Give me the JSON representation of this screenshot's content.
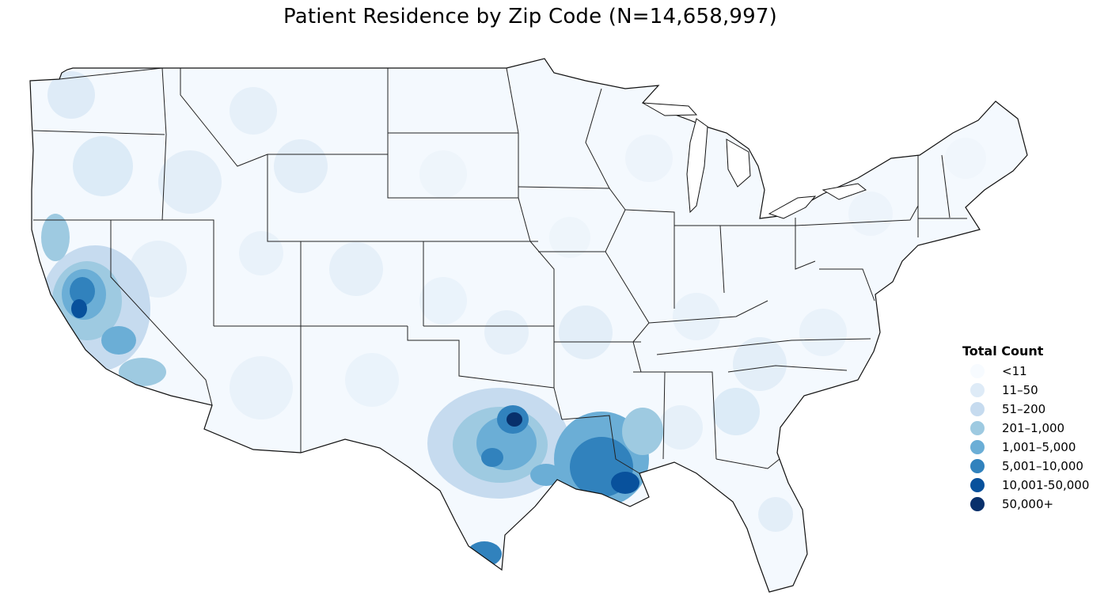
{
  "title": "Patient Residence by Zip Code (N=14,658,997)",
  "legend": {
    "title": "Total Count",
    "items": [
      {
        "label": "<11",
        "color": "#f7fbff"
      },
      {
        "label": "11–50",
        "color": "#deebf7"
      },
      {
        "label": "51–200",
        "color": "#c6dbef"
      },
      {
        "label": "201–1,000",
        "color": "#9ecae1"
      },
      {
        "label": "1,001–5,000",
        "color": "#6baed6"
      },
      {
        "label": "5,001–10,000",
        "color": "#3182bd"
      },
      {
        "label": "10,001-50,000",
        "color": "#08519c"
      },
      {
        "label": "50,000+",
        "color": "#08306b"
      }
    ]
  },
  "map": {
    "region": "Contiguous United States",
    "unit": "zip code",
    "highlight_regions": [
      "California",
      "Texas",
      "Louisiana"
    ]
  }
}
